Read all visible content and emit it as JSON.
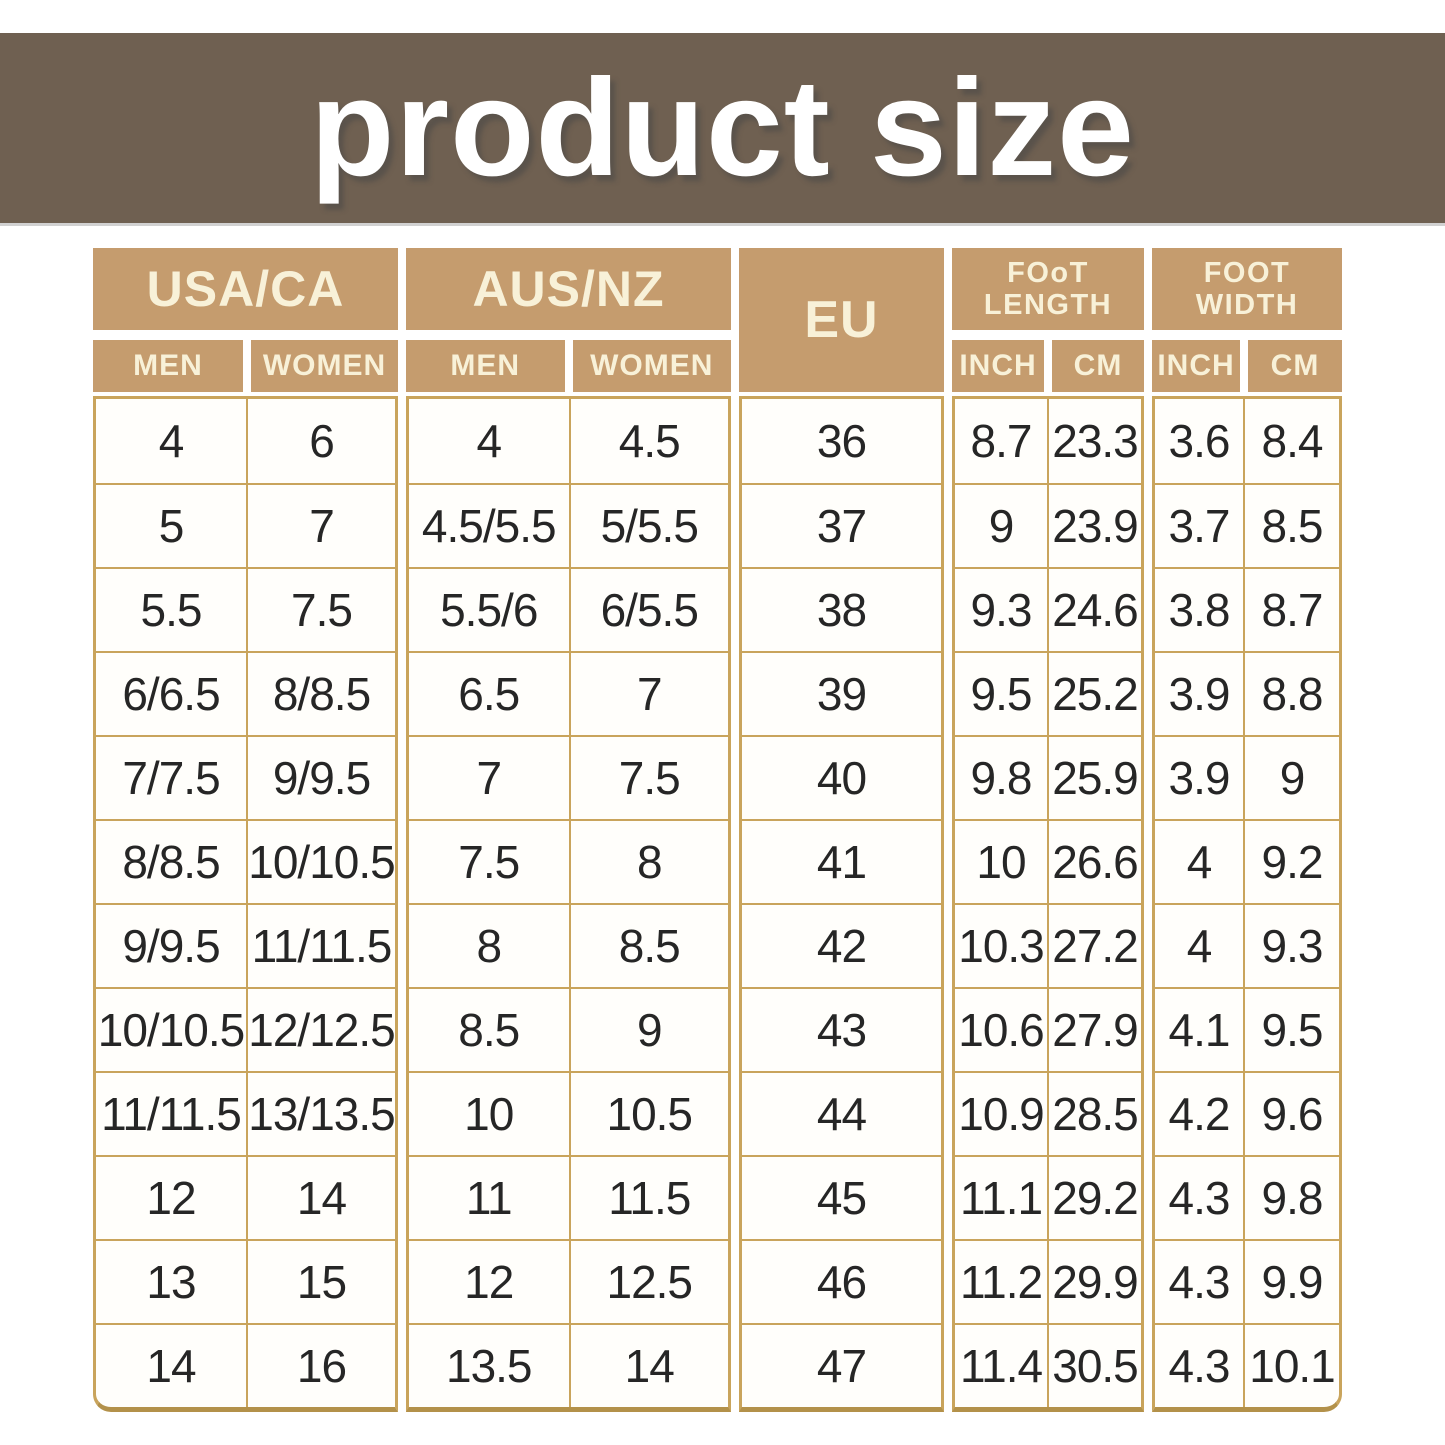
{
  "banner": {
    "title": "product size"
  },
  "colors": {
    "page_bg": "#ffffff",
    "banner_bg": "#6f6051",
    "banner_text": "#ffffff",
    "header_bg": "#c59c6e",
    "header_text": "#f8f1d8",
    "grid_border": "#c9a45c",
    "grid_border_dark": "#b3914a",
    "cell_bg": "#fffefb",
    "cell_text": "#262626"
  },
  "table": {
    "groups": [
      {
        "id": "usa-ca",
        "label_lines": [
          "USA/CA"
        ],
        "subcols": [
          "MEN",
          "WOMEN"
        ]
      },
      {
        "id": "aus-nz",
        "label_lines": [
          "AUS/NZ"
        ],
        "subcols": [
          "MEN",
          "WOMEN"
        ]
      },
      {
        "id": "eu",
        "label_lines": [
          "EU"
        ],
        "subcols": []
      },
      {
        "id": "foot-length",
        "label_lines": [
          "FOoT",
          "LENGTH"
        ],
        "subcols": [
          "INCH",
          "CM"
        ]
      },
      {
        "id": "foot-width",
        "label_lines": [
          "FOOT",
          "WIDTH"
        ],
        "subcols": [
          "INCH",
          "CM"
        ]
      }
    ],
    "rows": [
      [
        "4",
        "6",
        "4",
        "4.5",
        "36",
        "8.7",
        "23.3",
        "3.6",
        "8.4"
      ],
      [
        "5",
        "7",
        "4.5/5.5",
        "5/5.5",
        "37",
        "9",
        "23.9",
        "3.7",
        "8.5"
      ],
      [
        "5.5",
        "7.5",
        "5.5/6",
        "6/5.5",
        "38",
        "9.3",
        "24.6",
        "3.8",
        "8.7"
      ],
      [
        "6/6.5",
        "8/8.5",
        "6.5",
        "7",
        "39",
        "9.5",
        "25.2",
        "3.9",
        "8.8"
      ],
      [
        "7/7.5",
        "9/9.5",
        "7",
        "7.5",
        "40",
        "9.8",
        "25.9",
        "3.9",
        "9"
      ],
      [
        "8/8.5",
        "10/10.5",
        "7.5",
        "8",
        "41",
        "10",
        "26.6",
        "4",
        "9.2"
      ],
      [
        "9/9.5",
        "11/11.5",
        "8",
        "8.5",
        "42",
        "10.3",
        "27.2",
        "4",
        "9.3"
      ],
      [
        "10/10.5",
        "12/12.5",
        "8.5",
        "9",
        "43",
        "10.6",
        "27.9",
        "4.1",
        "9.5"
      ],
      [
        "11/11.5",
        "13/13.5",
        "10",
        "10.5",
        "44",
        "10.9",
        "28.5",
        "4.2",
        "9.6"
      ],
      [
        "12",
        "14",
        "11",
        "11.5",
        "45",
        "11.1",
        "29.2",
        "4.3",
        "9.8"
      ],
      [
        "13",
        "15",
        "12",
        "12.5",
        "46",
        "11.2",
        "29.9",
        "4.3",
        "9.9"
      ],
      [
        "14",
        "16",
        "13.5",
        "14",
        "47",
        "11.4",
        "30.5",
        "4.3",
        "10.1"
      ]
    ]
  }
}
